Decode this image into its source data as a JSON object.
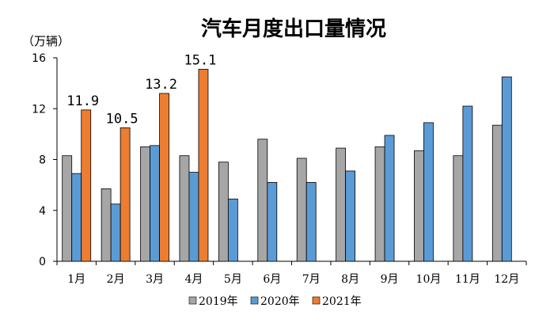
{
  "chart_data": {
    "type": "bar",
    "title": "汽车月度出口量情况",
    "unit_label": "（万辆）",
    "ylim": [
      0,
      16
    ],
    "yticks": [
      0,
      4,
      8,
      12,
      16
    ],
    "categories": [
      "1月",
      "2月",
      "3月",
      "4月",
      "5月",
      "6月",
      "7月",
      "8月",
      "9月",
      "10月",
      "11月",
      "12月"
    ],
    "series": [
      {
        "name": "2019年",
        "color": "#a6a6a6",
        "values": [
          8.3,
          5.7,
          9.0,
          8.3,
          7.8,
          9.6,
          8.1,
          8.9,
          9.0,
          8.7,
          8.3,
          10.7
        ]
      },
      {
        "name": "2020年",
        "color": "#5b9bd5",
        "values": [
          6.9,
          4.5,
          9.1,
          7.0,
          4.9,
          6.2,
          6.2,
          7.1,
          9.9,
          10.9,
          12.2,
          14.5
        ]
      },
      {
        "name": "2021年",
        "color": "#ed7d31",
        "values": [
          11.9,
          10.5,
          13.2,
          15.1,
          null,
          null,
          null,
          null,
          null,
          null,
          null,
          null
        ]
      }
    ],
    "data_labels": [
      {
        "series": "2021年",
        "index": 0,
        "text": "11.9"
      },
      {
        "series": "2021年",
        "index": 1,
        "text": "10.5"
      },
      {
        "series": "2021年",
        "index": 2,
        "text": "13.2"
      },
      {
        "series": "2021年",
        "index": 3,
        "text": "15.1"
      }
    ],
    "legend_position": "bottom-center",
    "grid": false
  }
}
